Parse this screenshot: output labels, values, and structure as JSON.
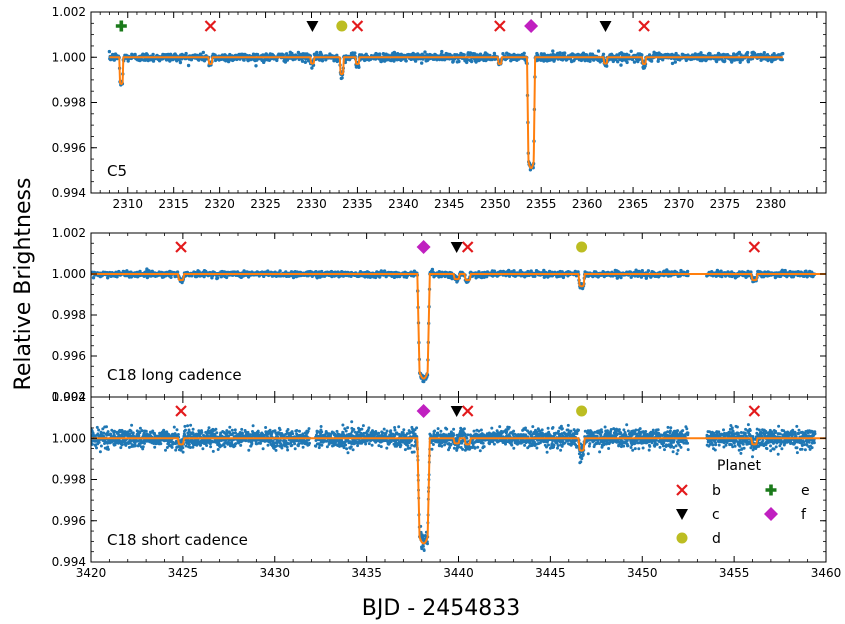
{
  "figure": {
    "xlabel": "BJD - 2454833",
    "ylabel": "Relative Brightness"
  },
  "colors": {
    "data": "#1f77b4",
    "model": "#ff7f0e",
    "b": "#e31a1c",
    "c": "#000000",
    "d": "#bcbd22",
    "e": "#1a7a1a",
    "f": "#c020c0"
  },
  "legend": {
    "title": "Planet",
    "entries": [
      {
        "id": "b",
        "label": "b",
        "marker": "x",
        "color": "#e31a1c"
      },
      {
        "id": "e",
        "label": "e",
        "marker": "plus",
        "color": "#1a7a1a"
      },
      {
        "id": "c",
        "label": "c",
        "marker": "triangle-down",
        "color": "#000000"
      },
      {
        "id": "f",
        "label": "f",
        "marker": "diamond",
        "color": "#c020c0"
      },
      {
        "id": "d",
        "label": "d",
        "marker": "circle",
        "color": "#bcbd22"
      }
    ]
  },
  "chart_data": [
    {
      "type": "scatter",
      "label": "C5",
      "xlim": [
        2306,
        2386
      ],
      "ylim": [
        0.994,
        1.002
      ],
      "xticks": [
        2310,
        2315,
        2320,
        2325,
        2330,
        2335,
        2340,
        2345,
        2350,
        2355,
        2360,
        2365,
        2370,
        2375,
        2380
      ],
      "yticks": [
        0.994,
        0.996,
        0.998,
        1.0,
        1.002
      ],
      "data_range": [
        2308.0,
        2381.3
      ],
      "gaps": [],
      "noise": 9e-05,
      "transits": [
        {
          "planet": "b",
          "time": 2319.0,
          "depth": 0.0003
        },
        {
          "planet": "b",
          "time": 2335.0,
          "depth": 0.0003
        },
        {
          "planet": "b",
          "time": 2350.5,
          "depth": 0.0003
        },
        {
          "planet": "b",
          "time": 2366.2,
          "depth": 0.0003
        },
        {
          "planet": "c",
          "time": 2330.1,
          "depth": 0.00028
        },
        {
          "planet": "c",
          "time": 2362.0,
          "depth": 0.00028
        },
        {
          "planet": "d",
          "time": 2333.3,
          "depth": 0.00075
        },
        {
          "planet": "e",
          "time": 2309.3,
          "depth": 0.00118
        },
        {
          "planet": "f",
          "time": 2353.9,
          "depth": 0.0049
        }
      ]
    },
    {
      "type": "scatter",
      "label": "C18 long cadence",
      "xlim": [
        3420,
        3460
      ],
      "ylim": [
        0.994,
        1.002
      ],
      "xticks": [],
      "yticks": [
        0.994,
        0.996,
        0.998,
        1.0,
        1.002
      ],
      "data_range": [
        3420.0,
        3459.4
      ],
      "gaps": [
        [
          3452.5,
          3453.5
        ]
      ],
      "noise": 7e-05,
      "transits": [
        {
          "planet": "b",
          "time": 3424.9,
          "depth": 0.0003
        },
        {
          "planet": "b",
          "time": 3440.5,
          "depth": 0.0003
        },
        {
          "planet": "b",
          "time": 3456.1,
          "depth": 0.0003
        },
        {
          "planet": "c",
          "time": 3439.9,
          "depth": 0.00025
        },
        {
          "planet": "d",
          "time": 3446.7,
          "depth": 0.0006
        },
        {
          "planet": "f",
          "time": 3438.1,
          "depth": 0.0051
        }
      ]
    },
    {
      "type": "scatter",
      "label": "C18 short cadence",
      "xlim": [
        3420,
        3460
      ],
      "ylim": [
        0.994,
        1.002
      ],
      "xticks": [
        3420,
        3425,
        3430,
        3435,
        3440,
        3445,
        3450,
        3455,
        3460
      ],
      "yticks": [
        0.994,
        0.996,
        0.998,
        1.0,
        1.002
      ],
      "data_range": [
        3420.0,
        3459.4
      ],
      "gaps": [
        [
          3431.9,
          3432.2
        ],
        [
          3452.5,
          3453.5
        ]
      ],
      "noise": 0.00022,
      "transits": [
        {
          "planet": "b",
          "time": 3424.9,
          "depth": 0.0003
        },
        {
          "planet": "b",
          "time": 3440.5,
          "depth": 0.0003
        },
        {
          "planet": "b",
          "time": 3456.1,
          "depth": 0.0003
        },
        {
          "planet": "c",
          "time": 3439.9,
          "depth": 0.00025
        },
        {
          "planet": "d",
          "time": 3446.7,
          "depth": 0.0006
        },
        {
          "planet": "f",
          "time": 3438.1,
          "depth": 0.0051
        }
      ]
    }
  ]
}
